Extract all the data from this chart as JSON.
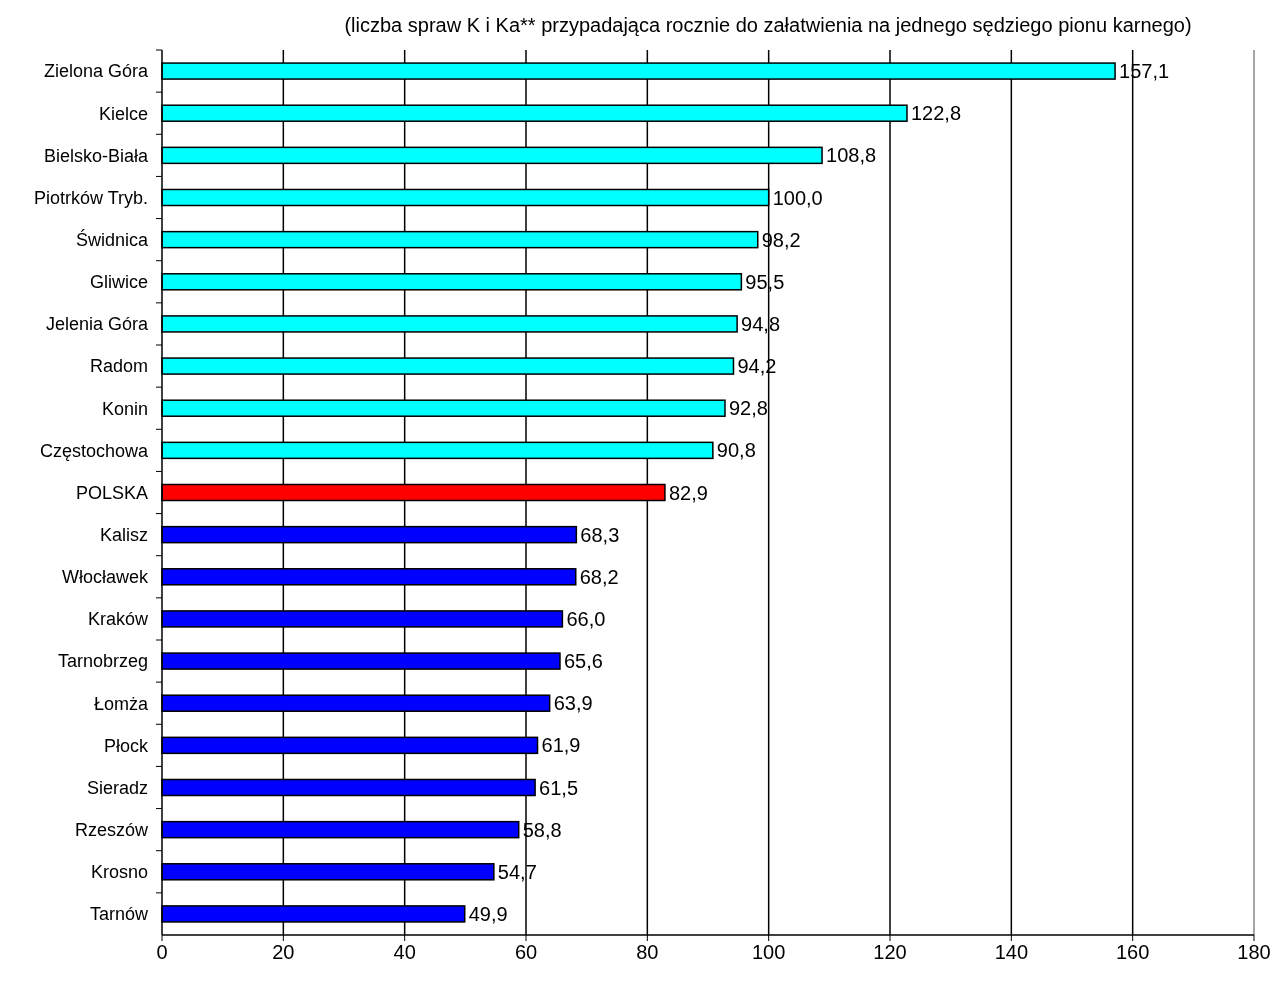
{
  "chart_data": {
    "type": "bar",
    "orientation": "horizontal",
    "title": "(liczba spraw K i Ka** przypadająca rocznie do załatwienia na jednego sędziego pionu karnego)",
    "categories": [
      "Zielona Góra",
      "Kielce",
      "Bielsko-Biała",
      "Piotrków Tryb.",
      "Świdnica",
      "Gliwice",
      "Jelenia Góra",
      "Radom",
      "Konin",
      "Częstochowa",
      "POLSKA",
      "Kalisz",
      "Włocławek",
      "Kraków",
      "Tarnobrzeg",
      "Łomża",
      "Płock",
      "Sieradz",
      "Rzeszów",
      "Krosno",
      "Tarnów"
    ],
    "values": [
      157.1,
      122.8,
      108.8,
      100.0,
      98.2,
      95.5,
      94.8,
      94.2,
      92.8,
      90.8,
      82.9,
      68.3,
      68.2,
      66.0,
      65.6,
      63.9,
      61.9,
      61.5,
      58.8,
      54.7,
      49.9
    ],
    "value_labels": [
      "157,1",
      "122,8",
      "108,8",
      "100,0",
      "98,2",
      "95,5",
      "94,8",
      "94,2",
      "92,8",
      "90,8",
      "82,9",
      "68,3",
      "68,2",
      "66,0",
      "65,6",
      "63,9",
      "61,9",
      "61,5",
      "58,8",
      "54,7",
      "49,9"
    ],
    "colors": [
      "#00ffff",
      "#00ffff",
      "#00ffff",
      "#00ffff",
      "#00ffff",
      "#00ffff",
      "#00ffff",
      "#00ffff",
      "#00ffff",
      "#00ffff",
      "#ff0000",
      "#0000ff",
      "#0000ff",
      "#0000ff",
      "#0000ff",
      "#0000ff",
      "#0000ff",
      "#0000ff",
      "#0000ff",
      "#0000ff",
      "#0000ff"
    ],
    "xlim": [
      0,
      180
    ],
    "xticks": [
      0,
      20,
      40,
      60,
      80,
      100,
      120,
      140,
      160,
      180
    ],
    "grid": "x"
  }
}
